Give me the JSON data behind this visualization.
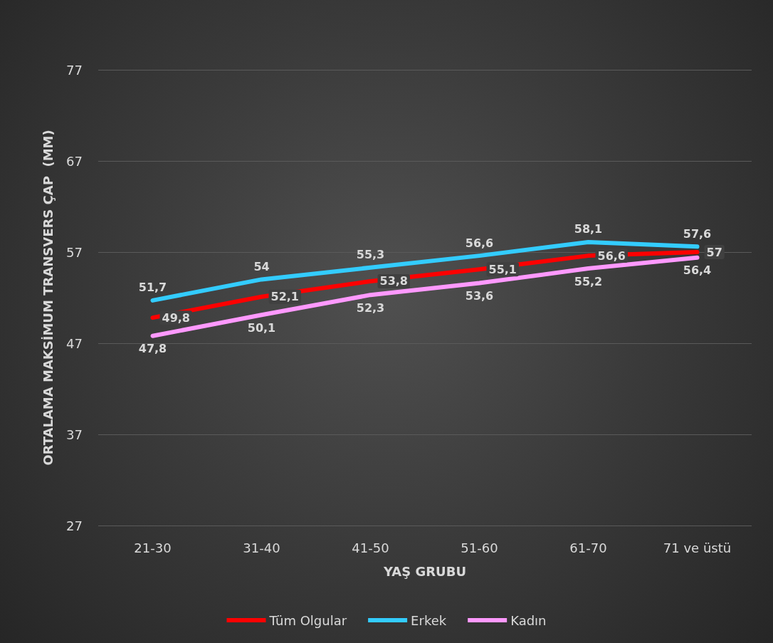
{
  "chart_data": {
    "type": "line",
    "xlabel": "YAŞ GRUBU",
    "ylabel": "ORTALAMA MAKSİMUM TRANSVERS ÇAP  (MM)",
    "categories": [
      "21-30",
      "31-40",
      "41-50",
      "51-60",
      "61-70",
      "71 ve üstü"
    ],
    "series": [
      {
        "name": "Tüm Olgular",
        "color": "#ff0000",
        "values": [
          49.8,
          52.1,
          53.8,
          55.1,
          56.6,
          57
        ],
        "value_labels": [
          "49,8",
          "52,1",
          "53,8",
          "55,1",
          "56,6",
          "57"
        ]
      },
      {
        "name": "Erkek",
        "color": "#33ccff",
        "values": [
          51.7,
          54,
          55.3,
          56.6,
          58.1,
          57.6
        ],
        "value_labels": [
          "51,7",
          "54",
          "55,3",
          "56,6",
          "58,1",
          "57,6"
        ]
      },
      {
        "name": "Kadın",
        "color": "#ff99ff",
        "values": [
          47.8,
          50.1,
          52.3,
          53.6,
          55.2,
          56.4
        ],
        "value_labels": [
          "47,8",
          "50,1",
          "52,3",
          "53,6",
          "55,2",
          "56,4"
        ]
      }
    ],
    "ylim": [
      27,
      77
    ],
    "yticks": [
      27,
      37,
      47,
      57,
      67,
      77
    ],
    "grid": "y",
    "legend": "bottom",
    "marker": "none",
    "line_style": "solid"
  }
}
